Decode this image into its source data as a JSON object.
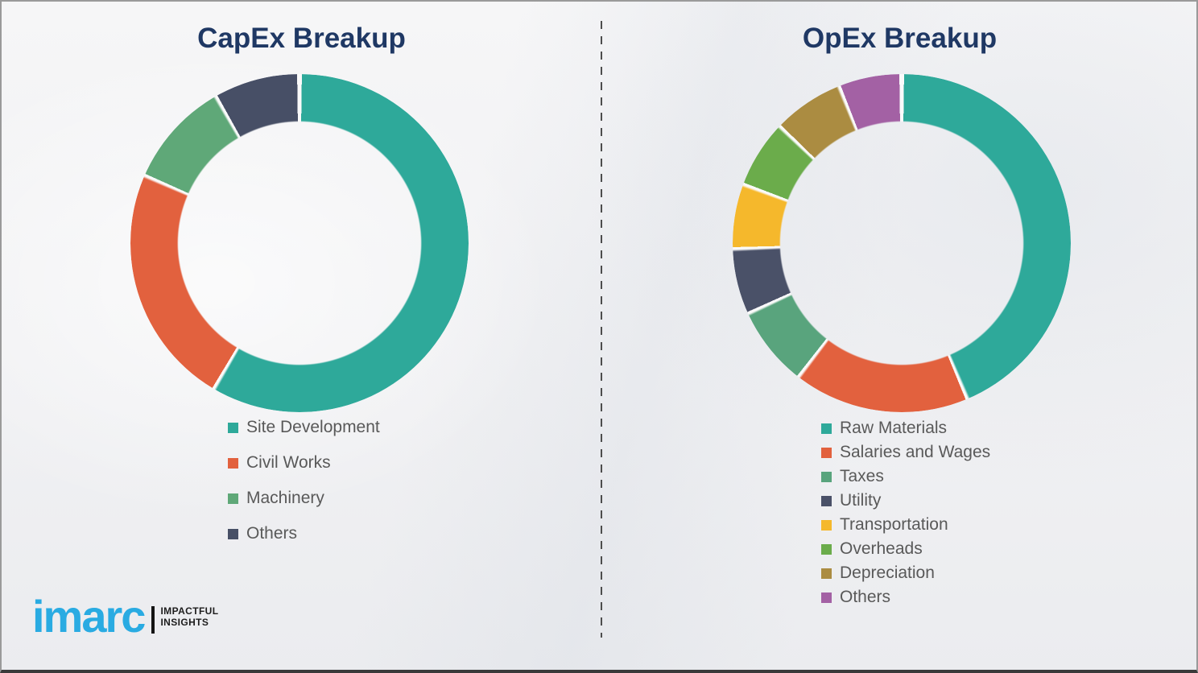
{
  "chart_data": [
    {
      "type": "pie",
      "subtype": "donut",
      "title": "CapEx Breakup",
      "labels": [
        "Site Development",
        "Civil Works",
        "Machinery",
        "Others"
      ],
      "values": [
        58.4,
        23.1,
        10.2,
        8.3
      ],
      "colors": [
        "#2EA99A",
        "#E2613E",
        "#5FA878",
        "#474F66"
      ],
      "start_angle_deg": 0,
      "direction": "clockwise",
      "hole_ratio": 0.72,
      "legend_position": "below-left"
    },
    {
      "type": "pie",
      "subtype": "donut",
      "title": "OpEx Breakup",
      "labels": [
        "Raw Materials",
        "Salaries and Wages",
        "Taxes",
        "Utility",
        "Transportation",
        "Overheads",
        "Depreciation",
        "Others"
      ],
      "values": [
        43.6,
        16.8,
        7.7,
        6.3,
        6.2,
        6.5,
        6.8,
        6.1
      ],
      "colors": [
        "#2EA99A",
        "#E2613E",
        "#59A47D",
        "#4A5168",
        "#F5B82C",
        "#6BAC4B",
        "#AB8C41",
        "#A361A4"
      ],
      "start_angle_deg": 0,
      "direction": "clockwise",
      "hole_ratio": 0.72,
      "legend_position": "below-left"
    }
  ],
  "logo": {
    "brand": "imarc",
    "tagline_line1": "IMPACTFUL",
    "tagline_line2": "INSIGHTS",
    "brand_color": "#29ABE2"
  },
  "styles": {
    "title_color": "#1F3864",
    "legend_text_color": "#595959",
    "background_color": "#F1F1F3",
    "divider_color": "#4D4D4D",
    "segment_gap_color": "#FAFAFA"
  }
}
